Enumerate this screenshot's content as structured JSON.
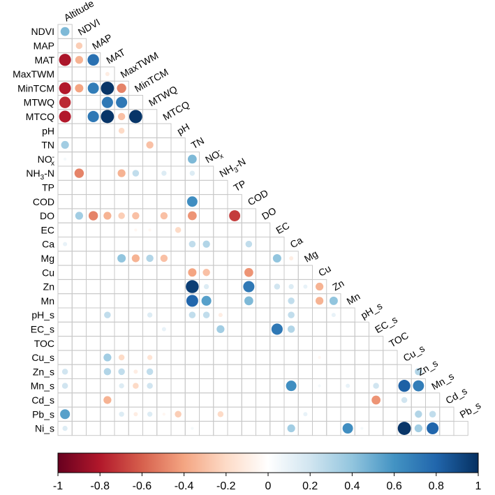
{
  "chart_data": {
    "type": "heatmap",
    "subtype": "lower-triangular correlation matrix (circle size and colour encode correlation)",
    "title": "",
    "variables": [
      {
        "name": "Altitude",
        "text": "Altitude"
      },
      {
        "name": "NDVI",
        "text": "NDVI"
      },
      {
        "name": "MAP",
        "text": "MAP"
      },
      {
        "name": "MAT",
        "text": "MAT"
      },
      {
        "name": "MaxTWM",
        "text": "MaxTWM"
      },
      {
        "name": "MinTCM",
        "text": "MinTCM"
      },
      {
        "name": "MTWQ",
        "text": "MTWQ"
      },
      {
        "name": "MTCQ",
        "text": "MTCQ"
      },
      {
        "name": "pH",
        "text": "pH"
      },
      {
        "name": "TN",
        "text": "TN"
      },
      {
        "name": "NOx",
        "text": "NO",
        "sup": "-",
        "sub": "x"
      },
      {
        "name": "NH3-N",
        "text": "NH",
        "sub": "3",
        "tail": "-N"
      },
      {
        "name": "TP",
        "text": "TP"
      },
      {
        "name": "COD",
        "text": "COD"
      },
      {
        "name": "DO",
        "text": "DO"
      },
      {
        "name": "EC",
        "text": "EC"
      },
      {
        "name": "Ca",
        "text": "Ca"
      },
      {
        "name": "Mg",
        "text": "Mg"
      },
      {
        "name": "Cu",
        "text": "Cu"
      },
      {
        "name": "Zn",
        "text": "Zn"
      },
      {
        "name": "Mn",
        "text": "Mn"
      },
      {
        "name": "pH_s",
        "text": "pH_s"
      },
      {
        "name": "EC_s",
        "text": "EC_s"
      },
      {
        "name": "TOC",
        "text": "TOC"
      },
      {
        "name": "Cu_s",
        "text": "Cu_s"
      },
      {
        "name": "Zn_s",
        "text": "Zn_s"
      },
      {
        "name": "Mn_s",
        "text": "Mn_s"
      },
      {
        "name": "Cd_s",
        "text": "Cd_s"
      },
      {
        "name": "Pb_s",
        "text": "Pb_s"
      },
      {
        "name": "Ni_s",
        "text": "Ni_s"
      }
    ],
    "row_variables": [
      "NDVI",
      "MAP",
      "MAT",
      "MaxTWM",
      "MinTCM",
      "MTWQ",
      "MTCQ",
      "pH",
      "TN",
      "NOx",
      "NH3-N",
      "TP",
      "COD",
      "DO",
      "EC",
      "Ca",
      "Mg",
      "Cu",
      "Zn",
      "Mn",
      "pH_s",
      "EC_s",
      "TOC",
      "Cu_s",
      "Zn_s",
      "Mn_s",
      "Cd_s",
      "Pb_s",
      "Ni_s"
    ],
    "column_variables": [
      "Altitude",
      "NDVI",
      "MAP",
      "MAT",
      "MaxTWM",
      "MinTCM",
      "MTWQ",
      "MTCQ",
      "pH",
      "TN",
      "NOx",
      "NH3-N",
      "TP",
      "COD",
      "DO",
      "EC",
      "Ca",
      "Mg",
      "Cu",
      "Zn",
      "Mn",
      "pH_s",
      "EC_s",
      "TOC",
      "Cu_s",
      "Zn_s",
      "Mn_s",
      "Cd_s",
      "Pb_s"
    ],
    "cells_note": "[row_variable, column_variable, correlation]; only significant (non-blank) cells listed",
    "cells": [
      [
        "NDVI",
        "Altitude",
        0.45
      ],
      [
        "MAP",
        "NDVI",
        -0.25
      ],
      [
        "MAT",
        "Altitude",
        -0.82
      ],
      [
        "MAT",
        "NDVI",
        -0.35
      ],
      [
        "MAT",
        "MAP",
        0.75
      ],
      [
        "MaxTWM",
        "MAT",
        -0.1
      ],
      [
        "MinTCM",
        "Altitude",
        -0.8
      ],
      [
        "MinTCM",
        "NDVI",
        -0.4
      ],
      [
        "MinTCM",
        "MAP",
        0.7
      ],
      [
        "MinTCM",
        "MAT",
        0.98
      ],
      [
        "MinTCM",
        "MaxTWM",
        -0.5
      ],
      [
        "MTWQ",
        "Altitude",
        -0.75
      ],
      [
        "MTWQ",
        "MAT",
        0.72
      ],
      [
        "MTWQ",
        "MaxTWM",
        0.72
      ],
      [
        "MTCQ",
        "Altitude",
        -0.8
      ],
      [
        "MTCQ",
        "MAP",
        0.72
      ],
      [
        "MTCQ",
        "MAT",
        0.98
      ],
      [
        "MTCQ",
        "MaxTWM",
        -0.3
      ],
      [
        "MTCQ",
        "MinTCM",
        0.98
      ],
      [
        "pH",
        "MaxTWM",
        -0.2
      ],
      [
        "TN",
        "Altitude",
        0.35
      ],
      [
        "TN",
        "MTWQ",
        -0.3
      ],
      [
        "NOx",
        "Altitude",
        0.05
      ],
      [
        "NOx",
        "TN",
        0.45
      ],
      [
        "NH3-N",
        "NDVI",
        -0.5
      ],
      [
        "NH3-N",
        "MaxTWM",
        -0.35
      ],
      [
        "NH3-N",
        "MinTCM",
        0.25
      ],
      [
        "NH3-N",
        "MTCQ",
        0.15
      ],
      [
        "NH3-N",
        "TN",
        0.15
      ],
      [
        "COD",
        "TN",
        0.62
      ],
      [
        "DO",
        "NDVI",
        0.35
      ],
      [
        "DO",
        "MAP",
        -0.5
      ],
      [
        "DO",
        "MAT",
        -0.35
      ],
      [
        "DO",
        "MaxTWM",
        -0.25
      ],
      [
        "DO",
        "MinTCM",
        -0.3
      ],
      [
        "DO",
        "MTCQ",
        -0.3
      ],
      [
        "DO",
        "TN",
        -0.45
      ],
      [
        "DO",
        "TP",
        -0.7
      ],
      [
        "EC",
        "MinTCM",
        -0.05
      ],
      [
        "EC",
        "MTWQ",
        -0.05
      ],
      [
        "EC",
        "pH",
        -0.2
      ],
      [
        "Ca",
        "Altitude",
        0.1
      ],
      [
        "Ca",
        "TN",
        0.25
      ],
      [
        "Ca",
        "NOx",
        0.3
      ],
      [
        "Ca",
        "COD",
        0.25
      ],
      [
        "Mg",
        "MaxTWM",
        0.4
      ],
      [
        "Mg",
        "MinTCM",
        -0.35
      ],
      [
        "Mg",
        "MTWQ",
        0.3
      ],
      [
        "Mg",
        "MTCQ",
        -0.3
      ],
      [
        "Mg",
        "EC",
        0.4
      ],
      [
        "Mg",
        "Ca",
        -0.1
      ],
      [
        "Cu",
        "TN",
        -0.4
      ],
      [
        "Cu",
        "NOx",
        -0.3
      ],
      [
        "Cu",
        "COD",
        -0.45
      ],
      [
        "Zn",
        "TN",
        0.95
      ],
      [
        "Zn",
        "NOx",
        0.15
      ],
      [
        "Zn",
        "COD",
        0.72
      ],
      [
        "Zn",
        "EC",
        0.2
      ],
      [
        "Zn",
        "Ca",
        0.15
      ],
      [
        "Zn",
        "Mg",
        0.1
      ],
      [
        "Zn",
        "Cu",
        -0.35
      ],
      [
        "Mn",
        "TN",
        0.8
      ],
      [
        "Mn",
        "NOx",
        0.55
      ],
      [
        "Mn",
        "COD",
        0.45
      ],
      [
        "Mn",
        "Ca",
        0.25
      ],
      [
        "Mn",
        "Cu",
        -0.35
      ],
      [
        "Mn",
        "Zn",
        0.4
      ],
      [
        "pH_s",
        "MAT",
        0.25
      ],
      [
        "pH_s",
        "MTWQ",
        0.15
      ],
      [
        "pH_s",
        "TN",
        0.25
      ],
      [
        "pH_s",
        "NOx",
        0.25
      ],
      [
        "pH_s",
        "NH3-N",
        -0.1
      ],
      [
        "pH_s",
        "Ca",
        0.25
      ],
      [
        "pH_s",
        "Zn",
        0.1
      ],
      [
        "EC_s",
        "MTCQ",
        0.1
      ],
      [
        "EC_s",
        "NH3-N",
        0.35
      ],
      [
        "EC_s",
        "EC",
        0.72
      ],
      [
        "EC_s",
        "Ca",
        0.3
      ],
      [
        "Cu_s",
        "MAT",
        0.35
      ],
      [
        "Cu_s",
        "MaxTWM",
        -0.2
      ],
      [
        "Cu_s",
        "MTWQ",
        -0.15
      ],
      [
        "Cu_s",
        "Cu",
        -0.05
      ],
      [
        "Zn_s",
        "Altitude",
        0.2
      ],
      [
        "Zn_s",
        "MAT",
        0.3
      ],
      [
        "Zn_s",
        "MaxTWM",
        0.25
      ],
      [
        "Zn_s",
        "MinTCM",
        -0.1
      ],
      [
        "Zn_s",
        "MTWQ",
        0.25
      ],
      [
        "Zn_s",
        "Zn_s",
        0.3
      ],
      [
        "Mn_s",
        "Altitude",
        0.2
      ],
      [
        "Mn_s",
        "MaxTWM",
        0.15
      ],
      [
        "Mn_s",
        "MinTCM",
        -0.2
      ],
      [
        "Mn_s",
        "MTWQ",
        0.2
      ],
      [
        "Mn_s",
        "Ca",
        0.62
      ],
      [
        "Mn_s",
        "Cu",
        0.05
      ],
      [
        "Mn_s",
        "Mn",
        0.1
      ],
      [
        "Mn_s",
        "EC_s",
        0.2
      ],
      [
        "Mn_s",
        "Cu_s",
        0.82
      ],
      [
        "Mn_s",
        "Zn_s",
        0.7
      ],
      [
        "Cd_s",
        "MAT",
        -0.35
      ],
      [
        "Cd_s",
        "EC_s",
        -0.45
      ],
      [
        "Cd_s",
        "Cu_s",
        0.2
      ],
      [
        "Pb_s",
        "Altitude",
        0.55
      ],
      [
        "Pb_s",
        "MaxTWM",
        0.15
      ],
      [
        "Pb_s",
        "MinTCM",
        -0.1
      ],
      [
        "Pb_s",
        "MTWQ",
        0.15
      ],
      [
        "Pb_s",
        "MTCQ",
        -0.05
      ],
      [
        "Pb_s",
        "pH",
        -0.25
      ],
      [
        "Pb_s",
        "NH3-N",
        -0.2
      ],
      [
        "Pb_s",
        "Mg",
        0.1
      ],
      [
        "Pb_s",
        "Zn_s",
        0.3
      ],
      [
        "Pb_s",
        "Mn_s",
        0.25
      ],
      [
        "Ni_s",
        "Altitude",
        0.15
      ],
      [
        "Ni_s",
        "TN",
        0.05
      ],
      [
        "Ni_s",
        "Ca",
        0.35
      ],
      [
        "Ni_s",
        "Mn",
        0.62
      ],
      [
        "Ni_s",
        "pH_s",
        0.05
      ],
      [
        "Ni_s",
        "Cu_s",
        0.98
      ],
      [
        "Ni_s",
        "Zn_s",
        0.35
      ],
      [
        "Ni_s",
        "Mn_s",
        0.8
      ]
    ],
    "colorbar": {
      "range": [
        -1,
        1
      ],
      "ticks": [
        "-1",
        "-0.8",
        "-0.6",
        "-0.4",
        "-0.2",
        "0",
        "0.2",
        "0.4",
        "0.6",
        "0.8",
        "1"
      ],
      "colors": [
        "#67001f",
        "#b2182b",
        "#d6604d",
        "#f4a582",
        "#fddbc7",
        "#ffffff",
        "#d1e5f0",
        "#92c5de",
        "#4393c3",
        "#2166ac",
        "#053061"
      ],
      "placement": "bottom"
    }
  }
}
